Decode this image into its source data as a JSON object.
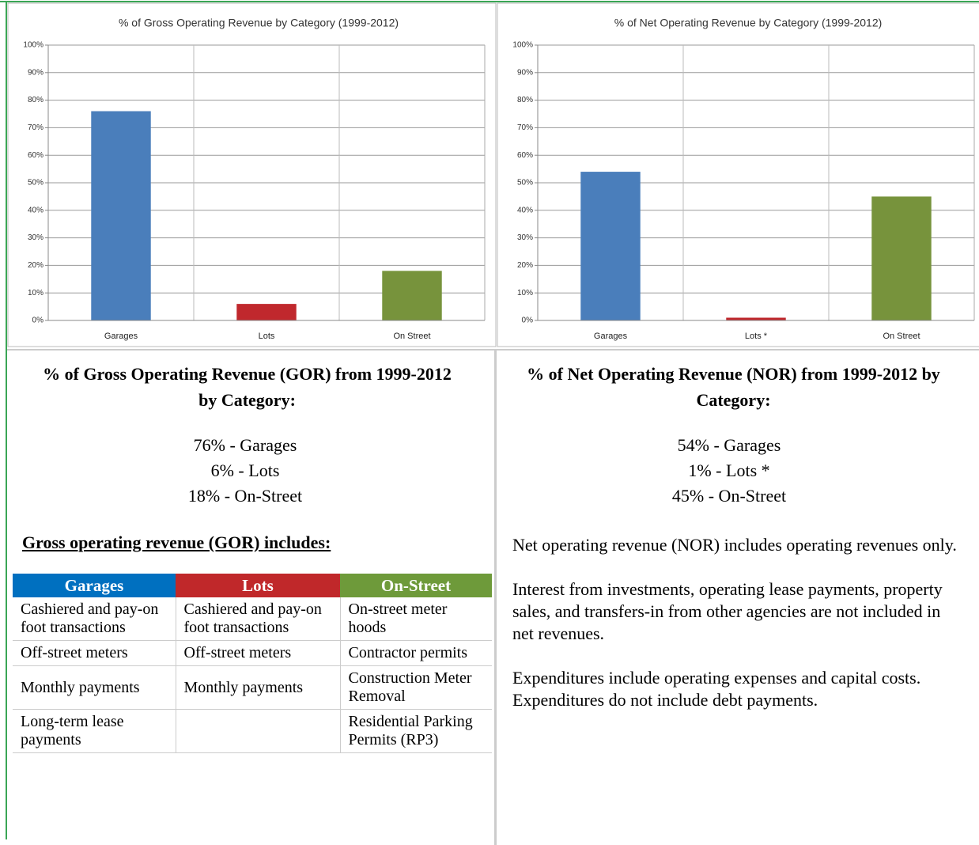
{
  "chart_data": [
    {
      "type": "bar",
      "title": "% of Gross Operating Revenue by Category (1999-2012)",
      "categories": [
        "Garages",
        "Lots",
        "On Street"
      ],
      "values": [
        76,
        6,
        18
      ],
      "colors": [
        "#4a7ebb",
        "#c0282d",
        "#77933c"
      ],
      "ylim": [
        0,
        100
      ],
      "yticks": [
        {
          "value": 0,
          "label": "0%"
        },
        {
          "value": 10,
          "label": "10%"
        },
        {
          "value": 20,
          "label": "20%"
        },
        {
          "value": 30,
          "label": "30%"
        },
        {
          "value": 40,
          "label": "40%"
        },
        {
          "value": 50,
          "label": "50%"
        },
        {
          "value": 60,
          "label": "60%"
        },
        {
          "value": 70,
          "label": "70%"
        },
        {
          "value": 80,
          "label": "80%"
        },
        {
          "value": 90,
          "label": "90%"
        },
        {
          "value": 100,
          "label": "100%"
        }
      ],
      "grid": true
    },
    {
      "type": "bar",
      "title": "% of Net Operating Revenue by Category (1999-2012)",
      "categories": [
        "Garages",
        "Lots *",
        "On Street"
      ],
      "values": [
        54,
        1,
        45
      ],
      "colors": [
        "#4a7ebb",
        "#c0282d",
        "#77933c"
      ],
      "ylim": [
        0,
        100
      ],
      "yticks": [
        {
          "value": 0,
          "label": "0%"
        },
        {
          "value": 10,
          "label": "10%"
        },
        {
          "value": 20,
          "label": "20%"
        },
        {
          "value": 30,
          "label": "30%"
        },
        {
          "value": 40,
          "label": "40%"
        },
        {
          "value": 50,
          "label": "50%"
        },
        {
          "value": 60,
          "label": "60%"
        },
        {
          "value": 70,
          "label": "70%"
        },
        {
          "value": 80,
          "label": "80%"
        },
        {
          "value": 90,
          "label": "90%"
        },
        {
          "value": 100,
          "label": "100%"
        }
      ],
      "grid": true
    }
  ],
  "left": {
    "heading": "% of Gross Operating Revenue (GOR) from 1999-2012 by Category:",
    "lines": [
      "76% - Garages",
      "6% - Lots",
      "18% - On-Street"
    ],
    "table_title": "Gross operating revenue (GOR) includes:",
    "table": {
      "header": [
        "Garages",
        "Lots",
        "On-Street"
      ],
      "rows": [
        [
          "Cashiered and pay-on foot transactions",
          "Cashiered and pay-on foot transactions",
          "On-street meter hoods"
        ],
        [
          "Off-street meters",
          "Off-street meters",
          "Contractor permits"
        ],
        [
          "Monthly payments",
          "Monthly payments",
          "Construction Meter Removal"
        ],
        [
          "Long-term lease payments",
          null,
          "Residential Parking Permits (RP3)"
        ]
      ]
    }
  },
  "right": {
    "heading": "% of Net Operating Revenue (NOR) from 1999-2012 by Category:",
    "lines": [
      "54% - Garages",
      "1% - Lots *",
      "45% - On-Street"
    ],
    "paragraphs": [
      "Net operating revenue (NOR) includes operating revenues only.",
      "Interest from investments, operating lease payments, property sales, and transfers-in from other agencies are not included in net revenues.",
      "Expenditures include operating expenses and capital costs.  Expenditures do not include debt payments."
    ]
  }
}
